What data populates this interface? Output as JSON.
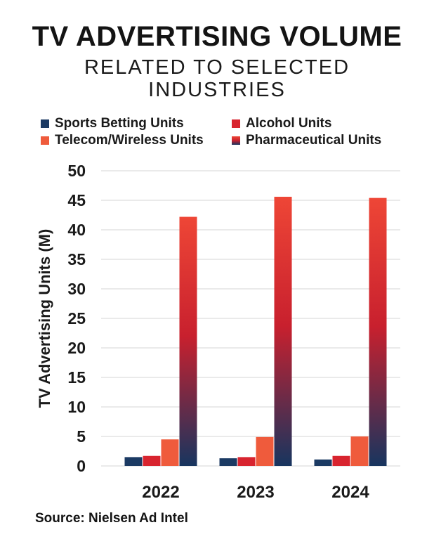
{
  "header": {
    "title": "TV ADVERTISING VOLUME",
    "subtitle_line1": "RELATED TO SELECTED",
    "subtitle_line2": "INDUSTRIES"
  },
  "colors": {
    "sports_betting": "#1b3a63",
    "alcohol": "#d8242f",
    "telecom": "#ef5b3c",
    "pharma_top": "#ee4636",
    "pharma_mid": "#c8202e",
    "pharma_bottom": "#17355f",
    "grid": "#d4d4d4",
    "text": "#1a1a1a"
  },
  "chart_data": {
    "type": "bar",
    "categories": [
      "2022",
      "2023",
      "2024"
    ],
    "series": [
      {
        "name": "Sports Betting Units",
        "values": [
          1.5,
          1.3,
          1.1
        ]
      },
      {
        "name": "Alcohol Units",
        "values": [
          1.7,
          1.5,
          1.7
        ]
      },
      {
        "name": "Telecom/Wireless Units",
        "values": [
          4.5,
          4.9,
          5.0
        ]
      },
      {
        "name": "Pharmaceutical Units",
        "values": [
          42.2,
          45.6,
          45.4
        ]
      }
    ],
    "ylabel": "TV Advertising Units (M)",
    "ylim": [
      0,
      50
    ],
    "yticks": [
      0,
      5,
      10,
      15,
      20,
      25,
      30,
      35,
      40,
      45,
      50
    ],
    "grid": true,
    "legend_position": "top"
  },
  "footer": {
    "source": "Source: Nielsen Ad Intel"
  }
}
